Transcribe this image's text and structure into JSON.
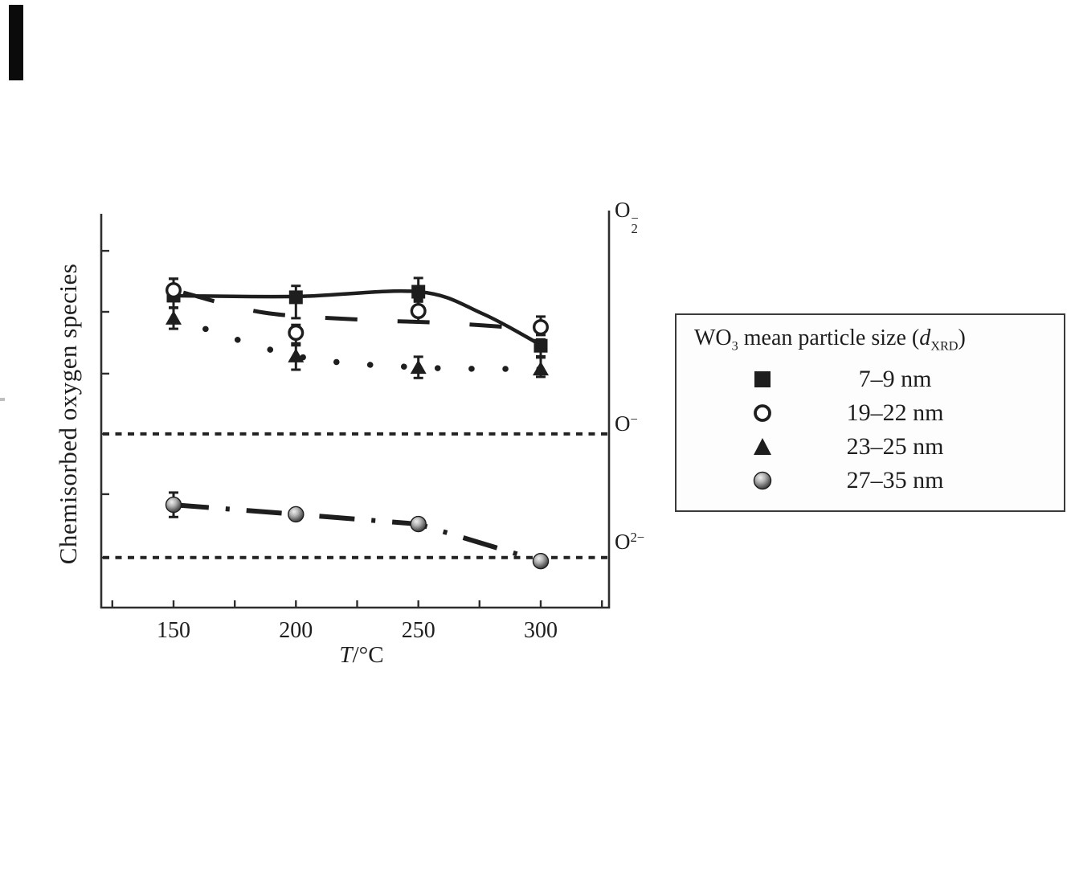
{
  "figure": {
    "background": "#ffffff",
    "ink_color": "#1e1e1e",
    "axis_color": "#2e2e2e"
  },
  "y_axis_label": "Chemisorbed oxygen species",
  "x_axis_label": {
    "variable": "T",
    "rest": "/°C"
  },
  "species_labels": {
    "superoxide": {
      "base": "O",
      "sup": "−",
      "sub": "2"
    },
    "oxide": {
      "base": "O",
      "sup": "−"
    },
    "peroxide": {
      "base": "O",
      "sup": "2−"
    }
  },
  "legend": {
    "title_parts": {
      "prefix": "WO",
      "sub1": "3",
      "middle": " mean particle size (",
      "d": "d",
      "sub2": "XRD",
      "suffix": ")"
    },
    "items": [
      {
        "marker": "filled-square",
        "label": "7–9 nm"
      },
      {
        "marker": "open-circle",
        "label": "19–22 nm"
      },
      {
        "marker": "filled-triangle",
        "label": "23–25 nm"
      },
      {
        "marker": "shaded-sphere",
        "label": "27–35 nm"
      }
    ]
  },
  "chart_data": {
    "type": "scatter",
    "title": "",
    "xlabel": "T/°C",
    "ylabel": "Chemisorbed oxygen species",
    "grid": false,
    "legend_position": "outside-right",
    "x_axis": {
      "range": [
        120,
        328
      ],
      "major_ticks": [
        150,
        200,
        250,
        300
      ],
      "tick_labels": [
        "150",
        "200",
        "250",
        "300"
      ],
      "minor_ticks": [
        125,
        175,
        225,
        275,
        325
      ]
    },
    "y_axis": {
      "type": "qualitative",
      "note": "No numeric scale; y values are normalized 0–1 of axis height (0 = bottom axis, 1 = top).",
      "minor_ticks_rel": [
        0.906,
        0.751,
        0.594,
        0.441,
        0.288,
        0.127
      ]
    },
    "reference_lines": [
      {
        "label": "O−",
        "y_rel": 0.441,
        "style": "dotted"
      },
      {
        "label": "O2−",
        "y_rel": 0.127,
        "style": "dotted"
      }
    ],
    "band_labels": [
      {
        "label": "O2−(superoxide)",
        "y_rel": 1.0
      }
    ],
    "series": [
      {
        "name": "7–9 nm",
        "marker": "filled-square",
        "line": "solid",
        "x": [
          150,
          200,
          250,
          300
        ],
        "y_rel": [
          0.792,
          0.788,
          0.802,
          0.665
        ],
        "err_up": [
          0.043,
          0.029,
          0.035,
          0.016
        ],
        "err_dn": [
          0.031,
          0.053,
          0.02,
          0.027
        ],
        "line_pts": [
          [
            150,
            0.792
          ],
          [
            200,
            0.79
          ],
          [
            250,
            0.802
          ],
          [
            276,
            0.747
          ],
          [
            300,
            0.667
          ]
        ]
      },
      {
        "name": "19–22 nm",
        "marker": "open-circle",
        "line": "long-dash",
        "x": [
          150,
          200,
          250,
          300
        ],
        "y_rel": [
          0.806,
          0.698,
          0.753,
          0.712
        ],
        "err_up": [
          0.029,
          0.02,
          0.024,
          0.027
        ],
        "err_dn": [
          0.045,
          0.027,
          0.027,
          0.02
        ],
        "line_pts": [
          [
            154,
            0.8
          ],
          [
            187,
            0.749
          ],
          [
            227,
            0.731
          ],
          [
            263,
            0.722
          ],
          [
            300,
            0.706
          ]
        ]
      },
      {
        "name": "23–25 nm",
        "marker": "filled-triangle",
        "line": "dotted",
        "x": [
          150,
          200,
          250,
          300
        ],
        "y_rel": [
          0.735,
          0.639,
          0.61,
          0.606
        ],
        "err_up": [
          0.027,
          0.027,
          0.027,
          0.029
        ],
        "err_dn": [
          0.027,
          0.035,
          0.027,
          0.02
        ],
        "line_pts": [
          [
            150,
            0.735
          ],
          [
            200,
            0.639
          ],
          [
            250,
            0.61
          ],
          [
            300,
            0.606
          ]
        ]
      },
      {
        "name": "27–35 nm",
        "marker": "shaded-sphere",
        "line": "dash-dot",
        "x": [
          150,
          200,
          250,
          300
        ],
        "y_rel": [
          0.261,
          0.237,
          0.212,
          0.118
        ],
        "err_up": [
          0.031,
          0,
          0,
          0
        ],
        "err_dn": [
          0.031,
          0,
          0,
          0
        ],
        "line_pts": [
          [
            150,
            0.261
          ],
          [
            200,
            0.237
          ],
          [
            250,
            0.212
          ],
          [
            300,
            0.118
          ]
        ]
      }
    ]
  }
}
